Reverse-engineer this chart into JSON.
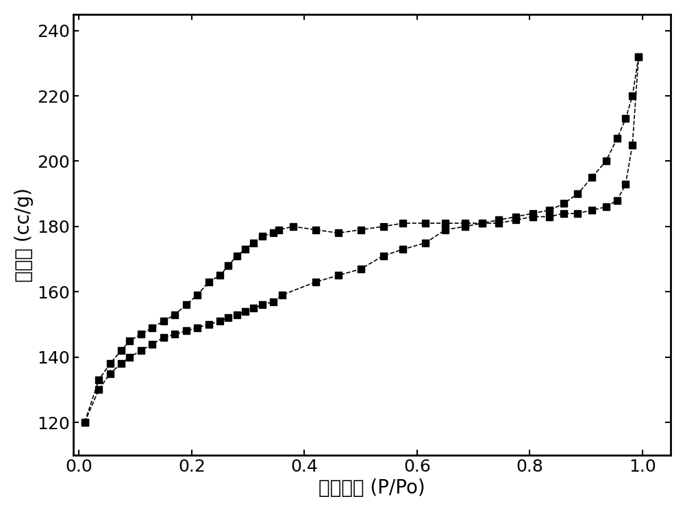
{
  "adsorption_x": [
    0.01,
    0.035,
    0.055,
    0.075,
    0.09,
    0.11,
    0.13,
    0.15,
    0.17,
    0.19,
    0.21,
    0.23,
    0.25,
    0.265,
    0.28,
    0.295,
    0.31,
    0.325,
    0.345,
    0.36,
    0.42,
    0.46,
    0.5,
    0.54,
    0.575,
    0.615,
    0.65,
    0.685,
    0.715,
    0.745,
    0.775,
    0.805,
    0.835,
    0.86,
    0.885,
    0.91,
    0.935,
    0.955,
    0.97,
    0.982,
    0.993
  ],
  "adsorption_y": [
    120,
    130,
    135,
    138,
    140,
    142,
    144,
    146,
    147,
    148,
    149,
    150,
    151,
    152,
    153,
    154,
    155,
    156,
    157,
    159,
    163,
    165,
    167,
    171,
    173,
    175,
    179,
    180,
    181,
    181,
    182,
    183,
    183,
    184,
    184,
    185,
    186,
    188,
    193,
    205,
    232
  ],
  "desorption_x": [
    0.993,
    0.982,
    0.97,
    0.955,
    0.935,
    0.91,
    0.885,
    0.86,
    0.835,
    0.805,
    0.775,
    0.745,
    0.715,
    0.685,
    0.65,
    0.615,
    0.575,
    0.54,
    0.5,
    0.46,
    0.42,
    0.38,
    0.355,
    0.345,
    0.325,
    0.31,
    0.295,
    0.28,
    0.265,
    0.25,
    0.23,
    0.21,
    0.19,
    0.17,
    0.15,
    0.13,
    0.11,
    0.09,
    0.075,
    0.055,
    0.035,
    0.01
  ],
  "desorption_y": [
    232,
    220,
    213,
    207,
    200,
    195,
    190,
    187,
    185,
    184,
    183,
    182,
    181,
    181,
    181,
    181,
    181,
    180,
    179,
    178,
    179,
    180,
    179,
    178,
    177,
    175,
    173,
    171,
    168,
    165,
    163,
    159,
    156,
    153,
    151,
    149,
    147,
    145,
    142,
    138,
    133,
    120
  ],
  "xlabel": "相对压力 (P/Po)",
  "ylabel": "吸附量 (cc/g)",
  "xlim": [
    -0.01,
    1.05
  ],
  "ylim": [
    110,
    245
  ],
  "xticks": [
    0.0,
    0.2,
    0.4,
    0.6,
    0.8,
    1.0
  ],
  "yticks": [
    120,
    140,
    160,
    180,
    200,
    220,
    240
  ],
  "line_color": "#000000",
  "marker": "s",
  "markersize": 7,
  "linewidth": 1.2,
  "linestyle": "--",
  "bg_color": "#ffffff",
  "xlabel_fontsize": 20,
  "ylabel_fontsize": 20,
  "tick_fontsize": 18
}
